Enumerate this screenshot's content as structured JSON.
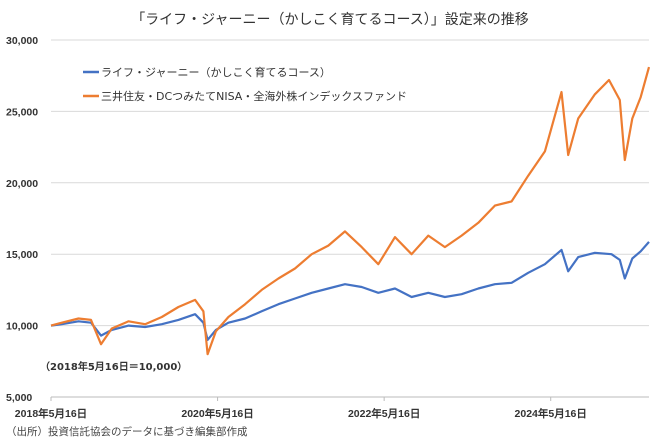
{
  "chart_data": {
    "type": "line",
    "title": "「ライフ・ジャーニー（かしこく育てるコース）」設定来の推移",
    "ylim": [
      5000,
      30000
    ],
    "yticks": [
      5000,
      10000,
      15000,
      20000,
      25000,
      30000
    ],
    "ytick_labels": [
      "5,000",
      "10,000",
      "15,000",
      "20,000",
      "25,000",
      "30,000"
    ],
    "xlim": [
      2018.37,
      2025.55
    ],
    "xticks": [
      2018.37,
      2020.37,
      2022.37,
      2024.37
    ],
    "xtick_labels": [
      "2018年5月16日",
      "2020年5月16日",
      "2022年5月16日",
      "2024年5月16日"
    ],
    "grid": true,
    "legend_position": "top-left",
    "annotation": "（2018年5月16日＝10,000）",
    "series": [
      {
        "name": "ライフ・ジャーニー（かしこく育てるコース）",
        "color": "#4472c4",
        "x": [
          2018.37,
          2018.5,
          2018.7,
          2018.85,
          2018.97,
          2019.1,
          2019.3,
          2019.5,
          2019.7,
          2019.9,
          2020.1,
          2020.2,
          2020.25,
          2020.35,
          2020.5,
          2020.7,
          2020.9,
          2021.1,
          2021.3,
          2021.5,
          2021.7,
          2021.9,
          2022.1,
          2022.3,
          2022.5,
          2022.7,
          2022.9,
          2023.1,
          2023.3,
          2023.5,
          2023.7,
          2023.9,
          2024.1,
          2024.3,
          2024.5,
          2024.58,
          2024.7,
          2024.9,
          2025.1,
          2025.2,
          2025.26,
          2025.35,
          2025.45,
          2025.55
        ],
        "values": [
          10000,
          10100,
          10300,
          10200,
          9300,
          9700,
          10000,
          9900,
          10100,
          10400,
          10800,
          10200,
          9000,
          9700,
          10200,
          10500,
          11000,
          11500,
          11900,
          12300,
          12600,
          12900,
          12700,
          12300,
          12600,
          12000,
          12300,
          12000,
          12200,
          12600,
          12900,
          13000,
          13700,
          14300,
          15300,
          13800,
          14800,
          15100,
          15000,
          14600,
          13300,
          14700,
          15200,
          15860
        ]
      },
      {
        "name": "三井住友・DCつみたてNISA・全海外株インデックスファンド",
        "color": "#ed7d31",
        "x": [
          2018.37,
          2018.5,
          2018.7,
          2018.85,
          2018.97,
          2019.1,
          2019.3,
          2019.5,
          2019.7,
          2019.9,
          2020.1,
          2020.2,
          2020.25,
          2020.35,
          2020.5,
          2020.7,
          2020.9,
          2021.1,
          2021.3,
          2021.5,
          2021.7,
          2021.9,
          2022.1,
          2022.3,
          2022.5,
          2022.7,
          2022.9,
          2023.1,
          2023.3,
          2023.5,
          2023.7,
          2023.9,
          2024.1,
          2024.3,
          2024.5,
          2024.58,
          2024.7,
          2024.9,
          2025.07,
          2025.2,
          2025.26,
          2025.35,
          2025.45,
          2025.55
        ],
        "values": [
          10000,
          10200,
          10500,
          10400,
          8700,
          9800,
          10300,
          10100,
          10600,
          11300,
          11800,
          11000,
          8000,
          9600,
          10600,
          11500,
          12500,
          13300,
          14000,
          15000,
          15600,
          16600,
          15500,
          14300,
          16200,
          15000,
          16300,
          15500,
          16300,
          17200,
          18400,
          18700,
          20500,
          22200,
          26360,
          21950,
          24500,
          26200,
          27200,
          25800,
          21600,
          24500,
          26000,
          28100
        ]
      }
    ]
  },
  "source": "（出所）投資信託協会のデータに基づき編集部作成"
}
